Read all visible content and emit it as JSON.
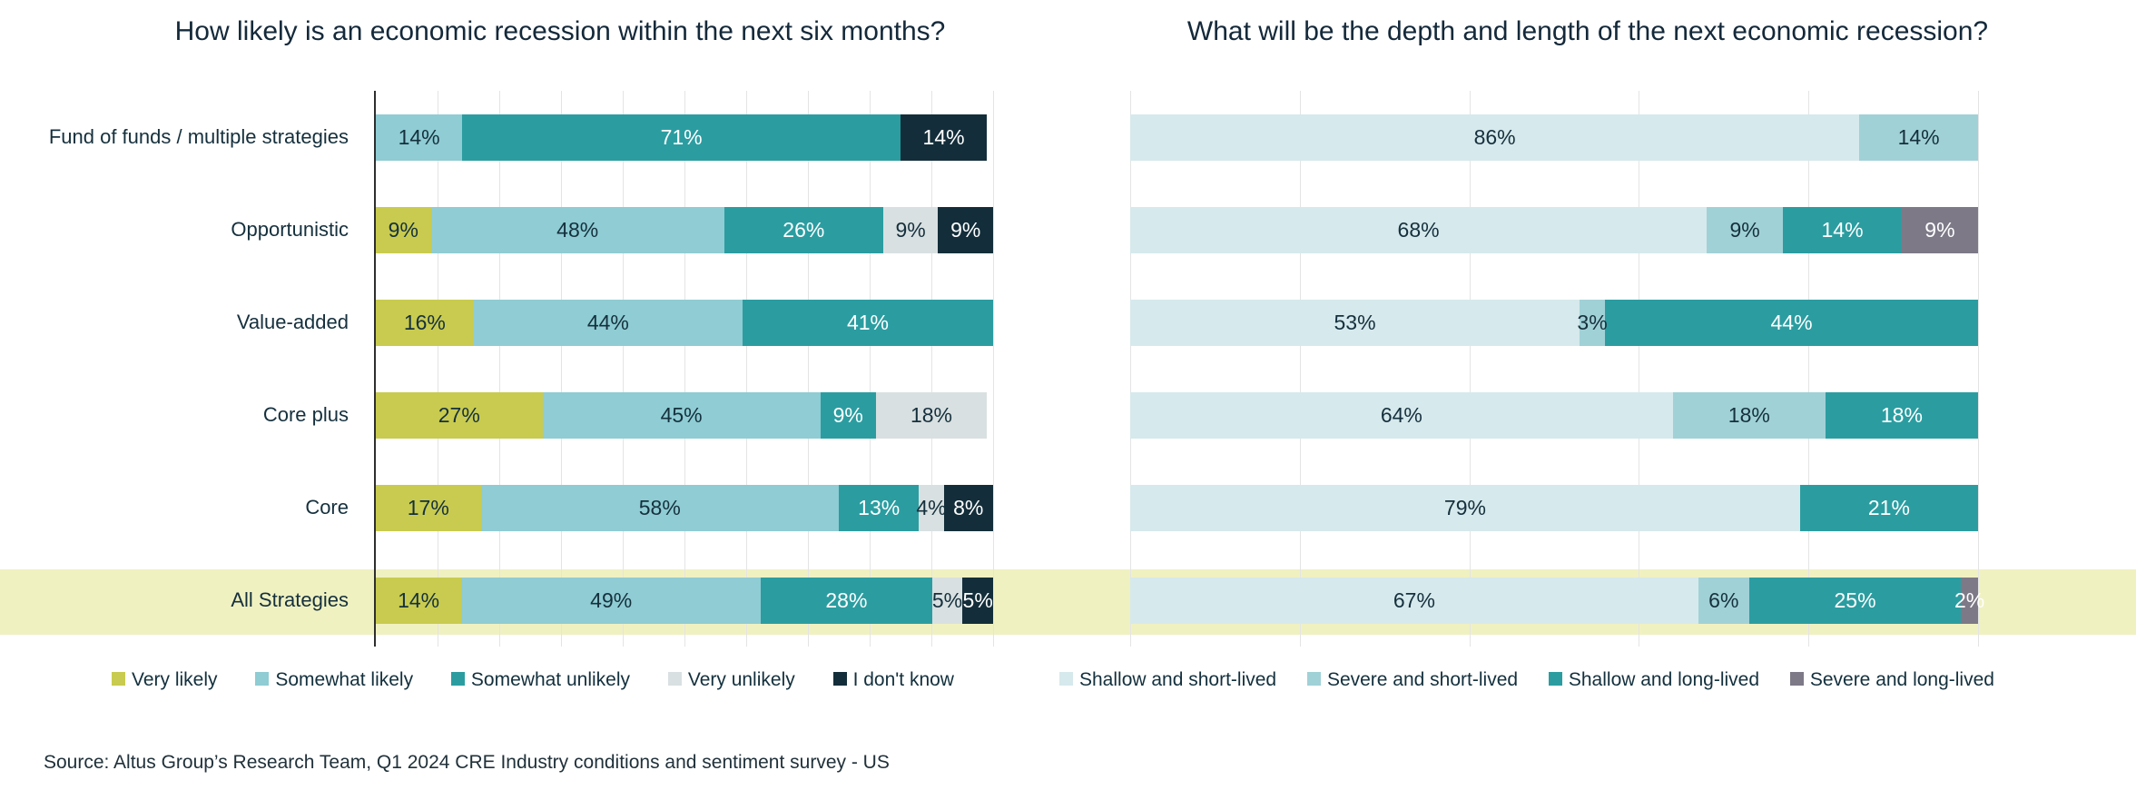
{
  "source_note": "Source: Altus Group’s Research Team, Q1 2024 CRE Industry conditions and sentiment survey - US",
  "highlight": {
    "category": "All Strategies",
    "color": "#f0f1c1"
  },
  "colors": {
    "grid": "#e4e4e4",
    "axis_line": "#2e2e2e",
    "title_text": "#14293a",
    "dark_label": "#15303d",
    "light_label": "#ffffff"
  },
  "chart_data": [
    {
      "type": "bar",
      "orientation": "horizontal-stacked",
      "title": "How likely is an economic recession within the next six months?",
      "unit": "%",
      "xlim": [
        0,
        100
      ],
      "categories": [
        "Fund of funds / multiple strategies",
        "Opportunistic",
        "Value-added",
        "Core plus",
        "Core",
        "All Strategies"
      ],
      "series": [
        {
          "name": "Very likely",
          "color": "#c8cb4f",
          "label_color": "#15303d",
          "values": [
            0,
            9,
            16,
            27,
            17,
            14
          ]
        },
        {
          "name": "Somewhat likely",
          "color": "#8fccd3",
          "label_color": "#15303d",
          "values": [
            14,
            48,
            44,
            45,
            58,
            49
          ]
        },
        {
          "name": "Somewhat unlikely",
          "color": "#2b9da1",
          "label_color": "#ffffff",
          "values": [
            71,
            26,
            41,
            9,
            13,
            28
          ]
        },
        {
          "name": "Very unlikely",
          "color": "#d9e0e1",
          "label_color": "#15303d",
          "values": [
            0,
            9,
            0,
            18,
            4,
            5
          ]
        },
        {
          "name": "I don't know",
          "color": "#132e3a",
          "label_color": "#ffffff",
          "values": [
            14,
            9,
            0,
            0,
            8,
            5
          ]
        }
      ],
      "layout": {
        "grid_interval_pct": 10,
        "axis_line": true,
        "legend_position": "bottom"
      }
    },
    {
      "type": "bar",
      "orientation": "horizontal-stacked",
      "title": "What will be the depth and length of the next economic recession?",
      "unit": "%",
      "xlim": [
        0,
        100
      ],
      "categories": [
        "Fund of funds / multiple strategies",
        "Opportunistic",
        "Value-added",
        "Core plus",
        "Core",
        "All Strategies"
      ],
      "series": [
        {
          "name": "Shallow and short-lived",
          "color": "#d6e9ec",
          "label_color": "#15303d",
          "values": [
            86,
            68,
            53,
            64,
            79,
            67
          ]
        },
        {
          "name": "Severe and short-lived",
          "color": "#a0d1d7",
          "label_color": "#15303d",
          "values": [
            14,
            9,
            3,
            18,
            0,
            6
          ]
        },
        {
          "name": "Shallow and long-lived",
          "color": "#2b9da1",
          "label_color": "#ffffff",
          "values": [
            0,
            14,
            44,
            18,
            21,
            25
          ]
        },
        {
          "name": "Severe and long-lived",
          "color": "#7d7987",
          "label_color": "#ffffff",
          "values": [
            0,
            9,
            0,
            0,
            0,
            2
          ]
        }
      ],
      "layout": {
        "grid_interval_pct": 20,
        "axis_line": false,
        "legend_position": "bottom"
      }
    }
  ]
}
